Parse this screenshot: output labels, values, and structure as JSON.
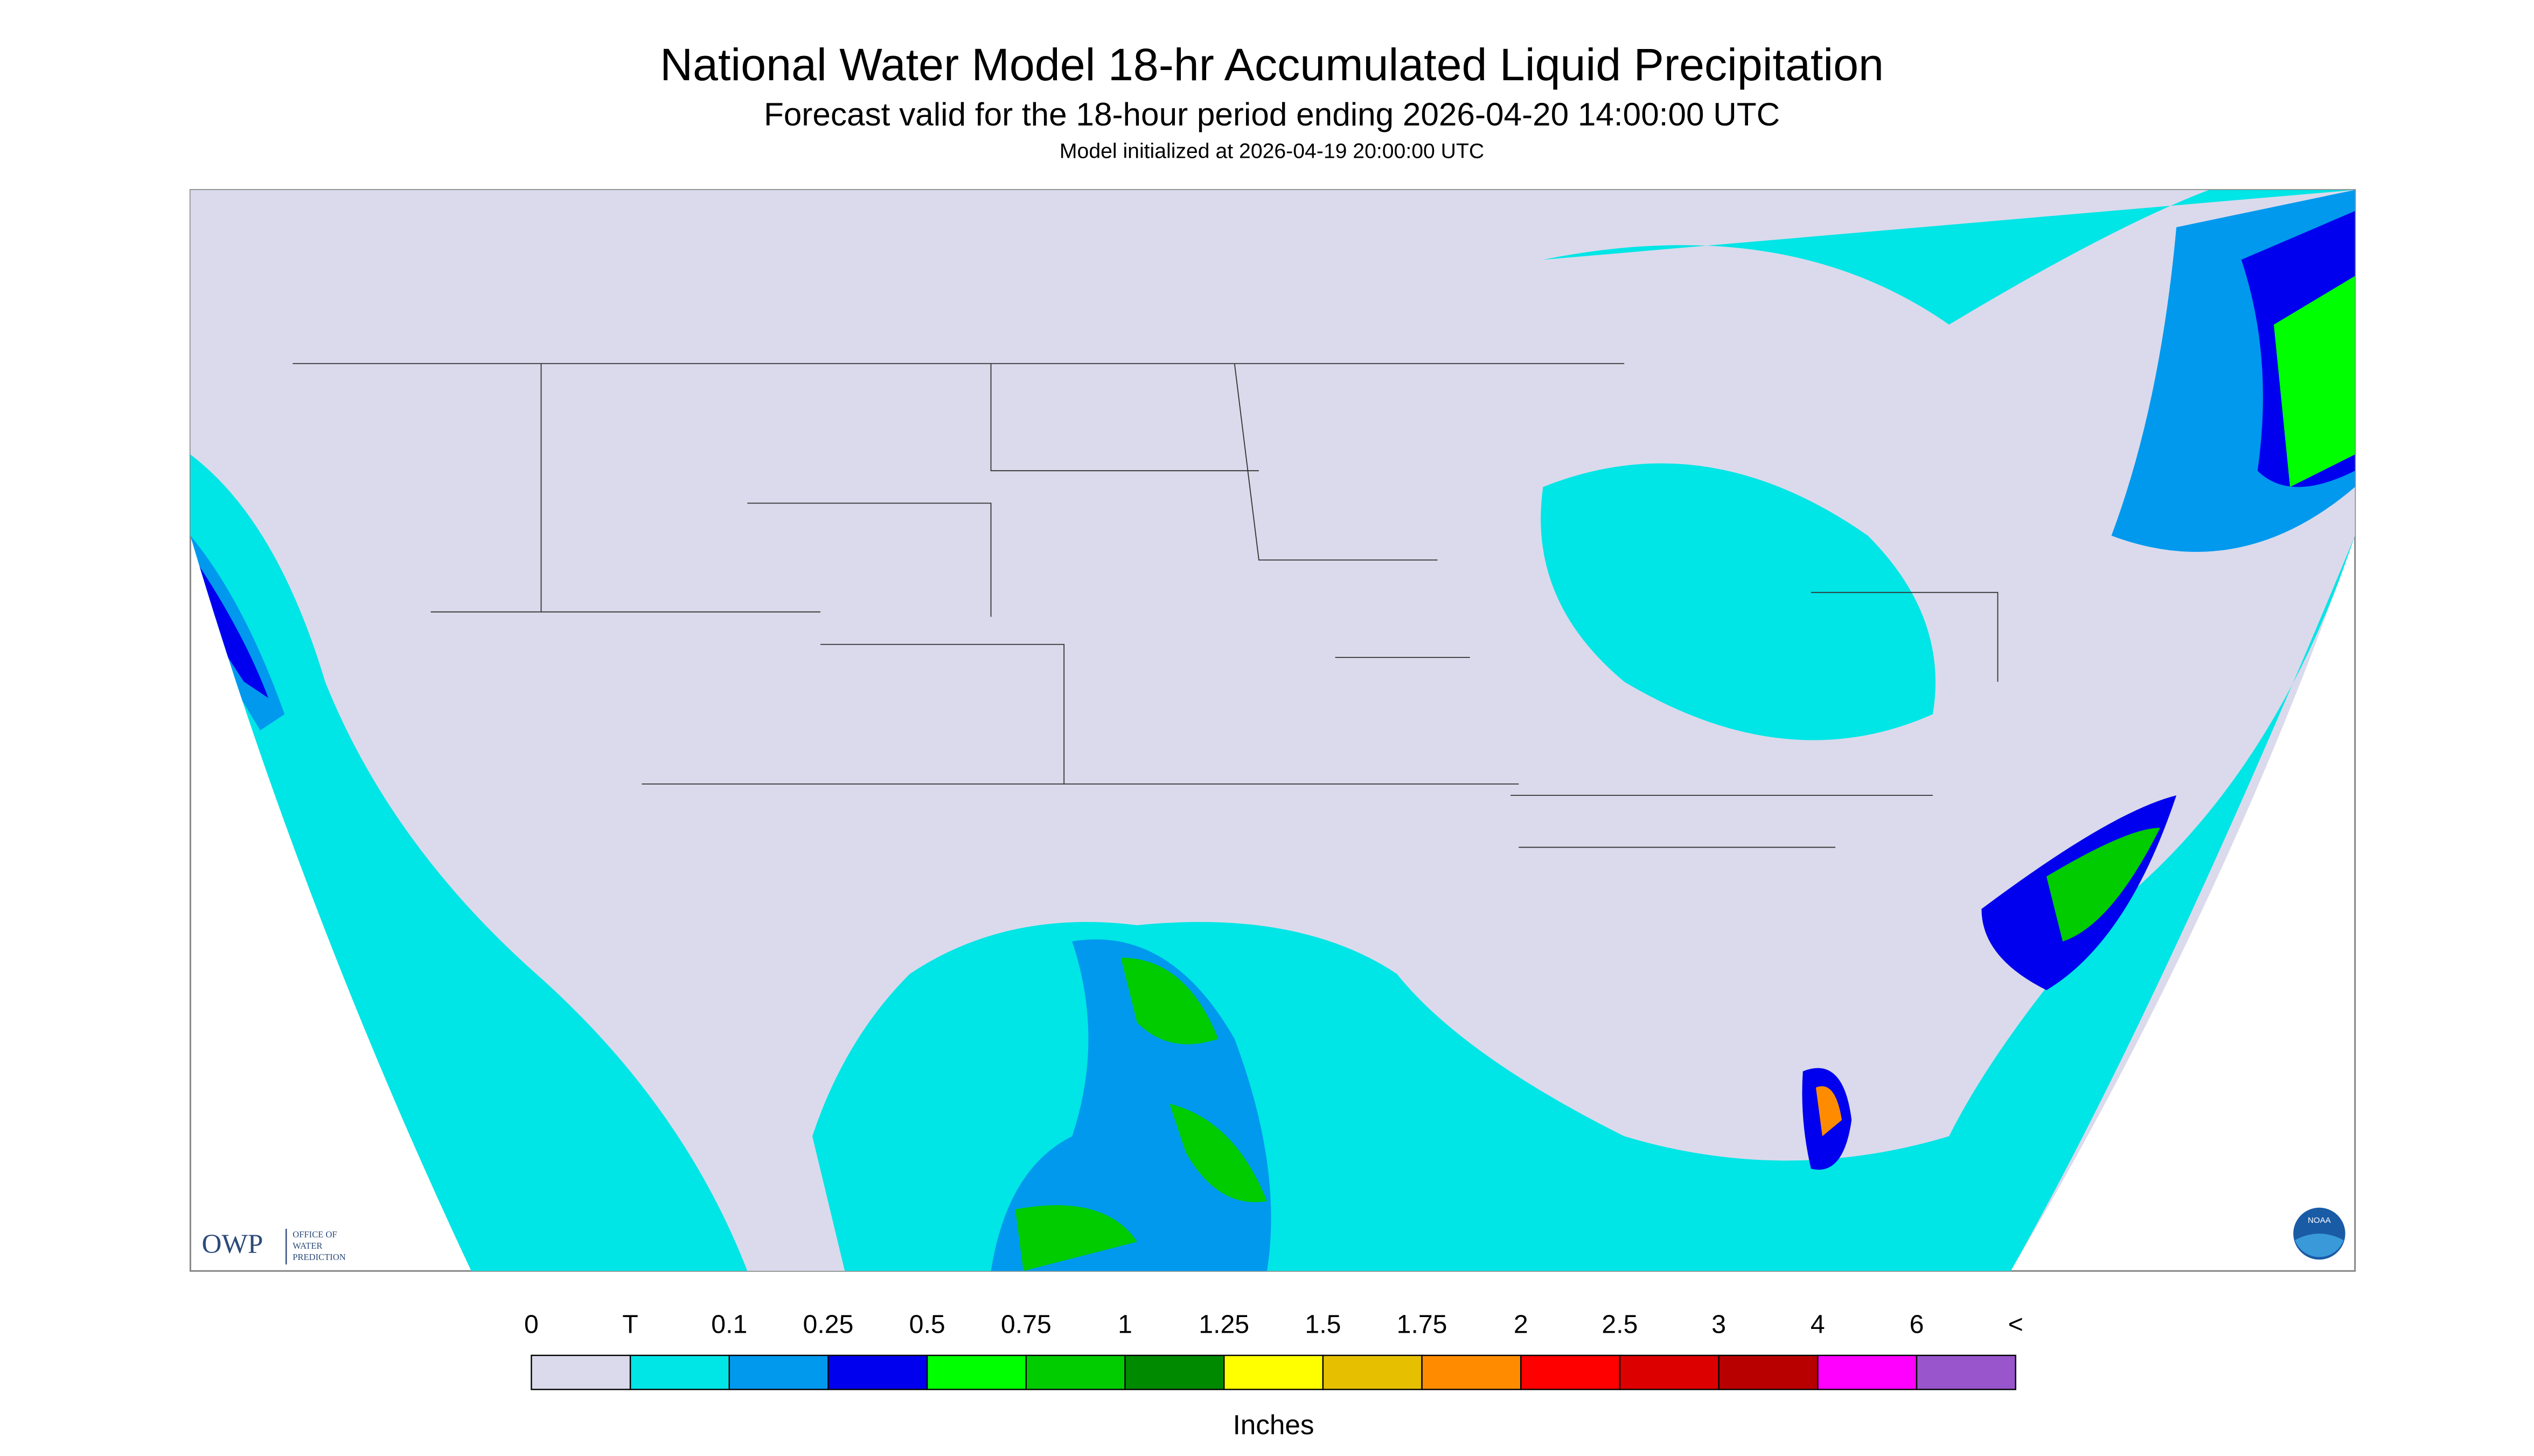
{
  "header": {
    "title": "National Water Model 18-hr Accumulated Liquid Precipitation",
    "subtitle": "Forecast valid for the 18-hour period ending 2026-04-20 14:00:00 UTC",
    "init": "Model initialized at 2026-04-19 20:00:00 UTC"
  },
  "legend": {
    "labels": [
      "0",
      "T",
      "0.1",
      "0.25",
      "0.5",
      "0.75",
      "1",
      "1.25",
      "1.5",
      "1.75",
      "2",
      "2.5",
      "3",
      "4",
      "6",
      "<"
    ],
    "colors": [
      "#dadaec",
      "#00e5e5",
      "#0099ee",
      "#0000ee",
      "#00ff00",
      "#00cc00",
      "#008a00",
      "#ffff00",
      "#e6c000",
      "#ff8c00",
      "#ff0000",
      "#dd0000",
      "#b80000",
      "#ff00ff",
      "#9955cc"
    ],
    "unit": "Inches"
  },
  "logos": {
    "owp": "OWP",
    "owp_lines": [
      "OFFICE OF",
      "WATER",
      "PREDICTION"
    ],
    "noaa": "NOAA"
  }
}
